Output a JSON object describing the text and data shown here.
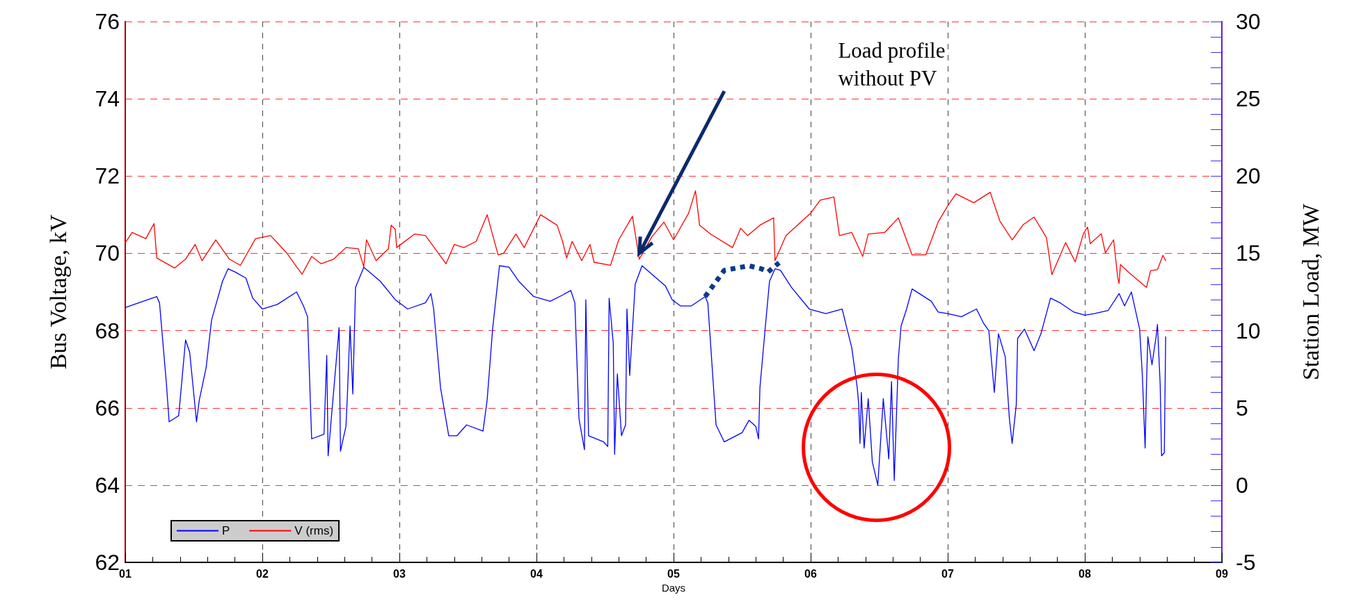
{
  "chart_data": {
    "type": "line",
    "xlabel": "Days",
    "ylabel": "Bus Voltage, kV",
    "y2label": "Station Load, MW",
    "xlim": [
      1,
      9
    ],
    "xticks": [
      {
        "value": 1,
        "label": "01"
      },
      {
        "value": 2,
        "label": "02"
      },
      {
        "value": 3,
        "label": "03"
      },
      {
        "value": 4,
        "label": "04"
      },
      {
        "value": 5,
        "label": "05"
      },
      {
        "value": 6,
        "label": "06"
      },
      {
        "value": 7,
        "label": "07"
      },
      {
        "value": 8,
        "label": "08"
      },
      {
        "value": 9,
        "label": "09"
      }
    ],
    "ylim": [
      62,
      76
    ],
    "yticks": [
      62,
      64,
      66,
      68,
      70,
      72,
      74,
      76
    ],
    "y2lim": [
      -5,
      30
    ],
    "y2ticks": [
      -5,
      0,
      5,
      10,
      15,
      20,
      25,
      30
    ],
    "grid": true,
    "legend": "bottom left",
    "annotations": [
      "Load profile\nwithout PV"
    ],
    "series": [
      {
        "name": "P",
        "color": "#0000ff",
        "axis": "y2",
        "x": [
          1.0,
          1.23,
          1.25,
          1.3,
          1.32,
          1.39,
          1.44,
          1.47,
          1.52,
          1.54,
          1.59,
          1.63,
          1.71,
          1.75,
          1.8,
          1.88,
          1.93,
          2.0,
          2.11,
          2.25,
          2.3,
          2.33,
          2.35,
          2.36,
          2.45,
          2.47,
          2.48,
          2.56,
          2.57,
          2.61,
          2.62,
          2.64,
          2.66,
          2.68,
          2.74,
          2.86,
          2.97,
          3.06,
          3.19,
          3.23,
          3.25,
          3.3,
          3.36,
          3.42,
          3.49,
          3.61,
          3.64,
          3.68,
          3.73,
          3.8,
          3.87,
          3.98,
          4.1,
          4.19,
          4.25,
          4.28,
          4.31,
          4.35,
          4.36,
          4.38,
          4.49,
          4.52,
          4.53,
          4.56,
          4.57,
          4.59,
          4.62,
          4.65,
          4.66,
          4.68,
          4.72,
          4.77,
          4.94,
          4.99,
          5.05,
          5.13,
          5.23,
          5.25,
          5.31,
          5.37,
          5.5,
          5.55,
          5.6,
          5.62,
          5.63,
          5.67,
          5.7,
          5.74,
          5.78,
          5.86,
          5.99,
          6.11,
          6.23,
          6.26,
          6.3,
          6.34,
          6.35,
          6.36,
          6.37,
          6.39,
          6.42,
          6.45,
          6.49,
          6.53,
          6.57,
          6.59,
          6.61,
          6.64,
          6.66,
          6.7,
          6.74,
          6.88,
          6.93,
          7.0,
          7.1,
          7.21,
          7.26,
          7.3,
          7.34,
          7.37,
          7.42,
          7.45,
          7.47,
          7.5,
          7.51,
          7.56,
          7.63,
          7.68,
          7.75,
          7.82,
          7.92,
          8.0,
          8.07,
          8.17,
          8.25,
          8.29,
          8.34,
          8.4,
          8.42,
          8.44,
          8.45,
          8.46,
          8.49,
          8.52,
          8.53,
          8.55,
          8.56,
          8.58,
          8.59
        ],
        "values": [
          11.5,
          12.2,
          11.8,
          6.6,
          4.1,
          4.5,
          9.4,
          8.6,
          4.1,
          5.5,
          7.6,
          10.7,
          13.2,
          14.0,
          13.8,
          13.4,
          12.1,
          11.4,
          11.7,
          12.5,
          11.6,
          10.9,
          5.5,
          3.0,
          3.3,
          8.4,
          1.9,
          10.2,
          2.2,
          3.8,
          5.7,
          10.3,
          5.9,
          12.8,
          14.1,
          13.2,
          12.0,
          11.4,
          11.8,
          12.4,
          11.4,
          6.3,
          3.2,
          3.2,
          3.9,
          3.5,
          5.5,
          10.1,
          14.2,
          14.1,
          13.2,
          12.2,
          11.9,
          12.3,
          12.6,
          11.8,
          4.3,
          2.3,
          12.0,
          3.2,
          2.8,
          2.5,
          12.1,
          9.2,
          2.0,
          7.2,
          3.2,
          3.9,
          11.4,
          7.1,
          13.0,
          14.2,
          12.9,
          12.0,
          11.6,
          11.6,
          12.2,
          11.8,
          3.9,
          2.8,
          3.4,
          4.2,
          3.8,
          3.0,
          6.3,
          10.3,
          13.2,
          14.0,
          13.9,
          12.8,
          11.4,
          11.1,
          11.4,
          10.3,
          8.9,
          6.3,
          5.3,
          2.7,
          6.0,
          2.4,
          5.6,
          1.5,
          0.0,
          5.6,
          1.7,
          6.7,
          0.3,
          8.2,
          10.3,
          11.4,
          12.7,
          11.9,
          11.2,
          11.1,
          10.9,
          11.4,
          10.5,
          10.0,
          6.0,
          9.8,
          8.3,
          4.3,
          2.7,
          5.2,
          9.5,
          10.1,
          8.7,
          9.8,
          12.1,
          11.8,
          11.2,
          11.0,
          11.1,
          11.3,
          12.4,
          11.6,
          12.5,
          10.1,
          7.1,
          2.4,
          6.5,
          9.6,
          7.8,
          9.6,
          10.4,
          6.5,
          1.9,
          2.1,
          9.6
        ]
      },
      {
        "name": "V (rms)",
        "color": "#ff0000",
        "x": [
          1.0,
          1.05,
          1.15,
          1.21,
          1.23,
          1.36,
          1.44,
          1.51,
          1.56,
          1.66,
          1.76,
          1.84,
          1.95,
          2.06,
          2.1,
          2.18,
          2.25,
          2.29,
          2.36,
          2.43,
          2.52,
          2.61,
          2.7,
          2.74,
          2.76,
          2.83,
          2.92,
          2.94,
          2.97,
          2.98,
          3.11,
          3.19,
          3.34,
          3.4,
          3.47,
          3.56,
          3.64,
          3.72,
          3.76,
          3.85,
          3.91,
          4.03,
          4.15,
          4.19,
          4.22,
          4.26,
          4.33,
          4.39,
          4.42,
          4.54,
          4.6,
          4.7,
          4.75,
          4.84,
          4.93,
          5.0,
          5.11,
          5.16,
          5.19,
          5.27,
          5.43,
          5.49,
          5.54,
          5.63,
          5.73,
          5.74,
          5.82,
          5.95,
          6.0,
          6.07,
          6.17,
          6.21,
          6.3,
          6.38,
          6.42,
          6.54,
          6.64,
          6.74,
          6.84,
          6.93,
          7.0,
          7.06,
          7.19,
          7.31,
          7.38,
          7.47,
          7.55,
          7.63,
          7.72,
          7.76,
          7.8,
          7.86,
          7.93,
          7.99,
          8.02,
          8.04,
          8.12,
          8.15,
          8.21,
          8.24,
          8.25,
          8.26,
          8.32,
          8.45,
          8.48,
          8.53,
          8.57,
          8.59
        ],
        "values": [
          70.27,
          70.54,
          70.38,
          70.77,
          69.88,
          69.62,
          69.85,
          70.23,
          69.81,
          70.35,
          69.85,
          69.69,
          70.38,
          70.46,
          70.31,
          70.0,
          69.65,
          69.46,
          69.92,
          69.73,
          69.85,
          70.15,
          70.12,
          69.65,
          70.35,
          69.81,
          70.12,
          70.73,
          70.62,
          70.15,
          70.5,
          70.46,
          69.73,
          70.23,
          70.15,
          70.31,
          71.0,
          69.96,
          70.0,
          70.5,
          70.15,
          71.0,
          70.73,
          70.31,
          69.88,
          70.31,
          69.81,
          70.23,
          69.77,
          69.69,
          70.35,
          70.96,
          69.85,
          70.42,
          70.81,
          70.35,
          71.04,
          71.62,
          70.73,
          70.5,
          70.15,
          70.65,
          70.46,
          70.73,
          70.92,
          69.81,
          70.46,
          70.88,
          71.04,
          71.38,
          71.46,
          70.46,
          70.54,
          69.92,
          70.5,
          70.54,
          70.92,
          69.96,
          69.96,
          70.81,
          71.23,
          71.54,
          71.31,
          71.58,
          70.84,
          70.35,
          70.74,
          70.94,
          70.41,
          69.45,
          69.78,
          70.28,
          69.78,
          70.51,
          70.68,
          70.25,
          70.51,
          70.01,
          70.35,
          69.38,
          69.22,
          69.71,
          69.51,
          69.12,
          69.55,
          69.58,
          69.95,
          69.81
        ]
      },
      {
        "color": "#0b3a8c",
        "axis": "y2",
        "line_style": "dotted",
        "x": [
          5.23,
          5.37,
          5.55,
          5.64,
          5.69,
          5.77
        ],
        "values": [
          12.2,
          13.9,
          14.2,
          14.0,
          13.8,
          14.4
        ]
      }
    ]
  }
}
